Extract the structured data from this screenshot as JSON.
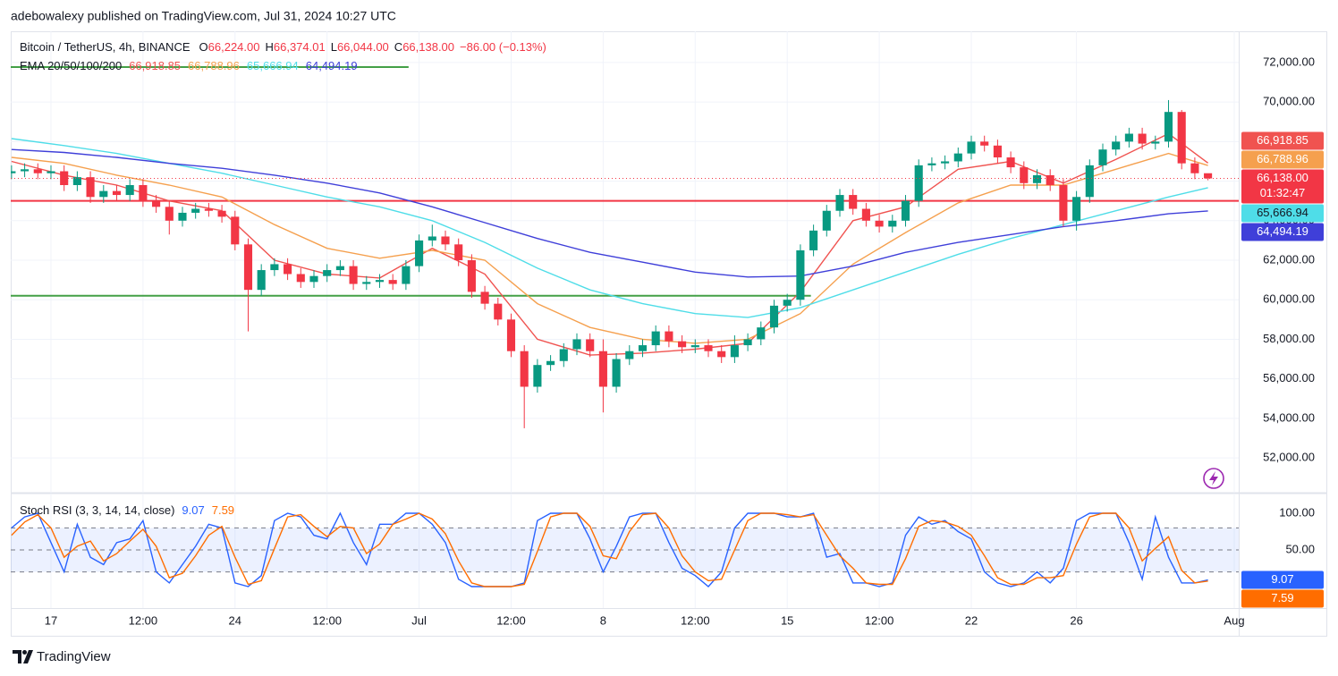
{
  "header": {
    "publisher": "adebowalexy published on TradingView.com, Jul 31, 2024 10:27 UTC"
  },
  "footer": {
    "brand": "TradingView"
  },
  "chart_data": [
    {
      "type": "candlestick",
      "title": "Bitcoin / TetherUS, 4h, BINANCE",
      "ohlc_legend": [
        {
          "key": "O",
          "value": "66,224.00"
        },
        {
          "key": "H",
          "value": "66,374.01"
        },
        {
          "key": "L",
          "value": "66,044.00"
        },
        {
          "key": "C",
          "value": "66,138.00"
        }
      ],
      "change": "−86.00 (−0.13%)",
      "x": [
        -1.5,
        -1,
        -0.5,
        0,
        0.5,
        1,
        1.5,
        2,
        2.5,
        3,
        3.5,
        4,
        4.5,
        5,
        5.5,
        6,
        6.5,
        7,
        7.5,
        8,
        8.5,
        9,
        9.5,
        10,
        10.5,
        11,
        11.5,
        12,
        12.5,
        13,
        13.5,
        14,
        14.5,
        15,
        15.5,
        16,
        16.5,
        17,
        17.5,
        18,
        18.5,
        19,
        19.5,
        20,
        20.5,
        21,
        21.5,
        22,
        22.5,
        23,
        23.5,
        24,
        24.5,
        25,
        25.5,
        26,
        26.5,
        27,
        27.5,
        28,
        28.5,
        29,
        29.5,
        30,
        30.5,
        31,
        31.5,
        32,
        32.5,
        33,
        33.5,
        34,
        34.5,
        35,
        35.5,
        36,
        36.5,
        37,
        37.5,
        38,
        38.5,
        39,
        39.5,
        40,
        40.5,
        41,
        41.5,
        42,
        42.5,
        43,
        43.5,
        44
      ],
      "open": [
        66400,
        66500,
        66600,
        66400,
        66500,
        65800,
        66200,
        65200,
        65500,
        65300,
        65800,
        65000,
        64700,
        64000,
        64400,
        64600,
        64500,
        64200,
        62800,
        60500,
        61500,
        61800,
        61300,
        60900,
        61200,
        61500,
        61700,
        60800,
        60900,
        61000,
        60800,
        61700,
        63000,
        63200,
        62800,
        62000,
        60400,
        59800,
        59000,
        57400,
        55600,
        56700,
        56900,
        57500,
        58000,
        57400,
        55600,
        57000,
        57400,
        57700,
        58400,
        57900,
        57600,
        57700,
        57400,
        57100,
        57700,
        58000,
        58600,
        59700,
        60000,
        62500,
        63500,
        64500,
        65300,
        64600,
        64000,
        63700,
        64000,
        65000,
        66800,
        66900,
        67000,
        67400,
        68000,
        67800,
        67200,
        66700,
        65900,
        66300,
        65800,
        64000,
        65200,
        66800,
        67600,
        68000,
        68400,
        67900,
        68000,
        69500,
        66900,
        66400
      ],
      "high": [
        66800,
        66900,
        66900,
        66800,
        66800,
        66500,
        66500,
        65800,
        65800,
        66100,
        66100,
        65300,
        65000,
        64700,
        64900,
        64900,
        64800,
        64500,
        63100,
        61800,
        62100,
        62100,
        61600,
        61500,
        61800,
        62000,
        62000,
        61200,
        61300,
        61300,
        62000,
        63300,
        63800,
        63500,
        63100,
        62300,
        60700,
        60100,
        59300,
        57700,
        57000,
        57200,
        57800,
        58300,
        58300,
        58000,
        57300,
        57700,
        58000,
        58700,
        58700,
        58200,
        58000,
        58000,
        57700,
        58200,
        58300,
        58900,
        60000,
        60300,
        62800,
        63800,
        64800,
        65600,
        65600,
        64900,
        64300,
        64300,
        65300,
        67100,
        67200,
        67300,
        67700,
        68300,
        68300,
        68100,
        67500,
        67000,
        66600,
        66600,
        66100,
        65500,
        67100,
        67900,
        68300,
        68700,
        68700,
        68300,
        70100,
        69600,
        67200,
        66374.01
      ],
      "low": [
        66100,
        66200,
        66100,
        66100,
        65500,
        65500,
        64900,
        64900,
        65000,
        65000,
        64700,
        64400,
        63300,
        63700,
        64100,
        64200,
        63900,
        62500,
        58400,
        60200,
        61200,
        61000,
        60600,
        60600,
        60900,
        61200,
        60500,
        60500,
        60600,
        60500,
        60500,
        61400,
        62700,
        62500,
        61700,
        60100,
        59500,
        58700,
        57100,
        53500,
        55300,
        56400,
        56600,
        57200,
        57100,
        54300,
        55300,
        56700,
        57100,
        57400,
        57600,
        57300,
        57300,
        57100,
        56800,
        56800,
        57400,
        57700,
        58300,
        59400,
        59700,
        62200,
        63200,
        64200,
        64300,
        63700,
        63400,
        63400,
        63700,
        64700,
        66500,
        66600,
        66700,
        67100,
        67500,
        66900,
        66400,
        65600,
        65600,
        65500,
        63700,
        63500,
        64900,
        66500,
        67300,
        67700,
        67600,
        67600,
        67700,
        66600,
        66100,
        66044
      ],
      "close": [
        66500,
        66600,
        66400,
        66500,
        65800,
        66200,
        65200,
        65500,
        65300,
        65800,
        65000,
        64700,
        64000,
        64400,
        64600,
        64500,
        64200,
        62800,
        60500,
        61500,
        61800,
        61300,
        60900,
        61200,
        61500,
        61700,
        60800,
        60900,
        61000,
        60800,
        61700,
        63000,
        63200,
        62800,
        62000,
        60400,
        59800,
        59000,
        57400,
        55600,
        56700,
        56900,
        57500,
        58000,
        57400,
        55600,
        57000,
        57400,
        57700,
        58400,
        57900,
        57600,
        57700,
        57400,
        57100,
        57700,
        58000,
        58600,
        59700,
        60000,
        62500,
        63500,
        64500,
        65300,
        64600,
        64000,
        63700,
        64000,
        65000,
        66800,
        66900,
        67000,
        67400,
        68000,
        67800,
        67200,
        66700,
        65900,
        66300,
        65800,
        64000,
        65200,
        66800,
        67600,
        68000,
        68400,
        67900,
        68000,
        69500,
        66900,
        66400,
        66138
      ],
      "up_color": "#089981",
      "down_color": "#f23645",
      "last_price": {
        "label": "66,138.00",
        "countdown": "01:32:47"
      },
      "ema": {
        "label": "EMA 20/50/100/200",
        "x": [
          -1.5,
          0.5,
          2.5,
          4.5,
          6.5,
          8.5,
          10.5,
          12.5,
          14.5,
          16.5,
          18.5,
          20.5,
          22.5,
          24.5,
          26.5,
          28.5,
          30.5,
          32.5,
          34.5,
          36.5,
          38.5,
          40.5,
          42.5,
          44
        ],
        "lines": [
          {
            "color": "#f05350",
            "last": {
              "value": 66918.85,
              "label": "66,918.85"
            },
            "values": [
              67000,
              66300,
              65800,
              65000,
              64500,
              62000,
              61300,
              61100,
              62600,
              61300,
              58000,
              57200,
              57300,
              57500,
              57800,
              60400,
              64000,
              64700,
              66600,
              67000,
              65900,
              67100,
              68400,
              66918.85
            ]
          },
          {
            "color": "#f5a04e",
            "last": {
              "value": 66788.96,
              "label": "66,788.96"
            },
            "values": [
              67200,
              66900,
              66300,
              65800,
              65200,
              63800,
              62600,
              62100,
              62500,
              62000,
              59800,
              58600,
              58000,
              57800,
              58000,
              59300,
              61800,
              63400,
              64900,
              65800,
              65800,
              66600,
              67400,
              66788.96
            ]
          },
          {
            "color": "#4fdde8",
            "last": {
              "value": 65666.94,
              "label": "65,666.94"
            },
            "values": [
              68150,
              67800,
              67400,
              66900,
              66400,
              65800,
              65200,
              64700,
              64000,
              62900,
              61600,
              60500,
              59800,
              59300,
              59100,
              59600,
              60500,
              61400,
              62300,
              63100,
              63800,
              64500,
              65200,
              65666.94
            ]
          },
          {
            "color": "#3f3fd9",
            "last": {
              "value": 64494.19,
              "label": "64,494.19"
            },
            "values": [
              67600,
              67450,
              67200,
              66900,
              66650,
              66300,
              65900,
              65400,
              64700,
              63900,
              63100,
              62400,
              61900,
              61400,
              61150,
              61200,
              61700,
              62400,
              62900,
              63300,
              63700,
              64000,
              64350,
              64494.19
            ]
          }
        ]
      },
      "hlines": [
        {
          "value": 65000,
          "color": "#f23645"
        },
        {
          "value": 60200,
          "color": "#43a047",
          "x_end": 28.9
        },
        {
          "value": 71770,
          "color": "#43a047",
          "x_end": 13.6
        }
      ],
      "xlim": [
        -1.53,
        45.17
      ],
      "ylim": [
        50240,
        73580
      ],
      "yticks": [
        {
          "value": 52000,
          "label": "52,000.00"
        },
        {
          "value": 54000,
          "label": "54,000.00"
        },
        {
          "value": 56000,
          "label": "56,000.00"
        },
        {
          "value": 58000,
          "label": "58,000.00"
        },
        {
          "value": 60000,
          "label": "60,000.00"
        },
        {
          "value": 62000,
          "label": "62,000.00"
        },
        {
          "value": 64000,
          "label": "64,000.00"
        },
        {
          "value": 66000,
          "label": "66,000.00"
        },
        {
          "value": 68000,
          "label": "68,000.00"
        },
        {
          "value": 70000,
          "label": "70,000.00"
        },
        {
          "value": 72000,
          "label": "72,000.00"
        }
      ],
      "xticks": [
        {
          "value": 0,
          "label": "17"
        },
        {
          "value": 3.5,
          "label": "12:00"
        },
        {
          "value": 7,
          "label": "24"
        },
        {
          "value": 10.5,
          "label": "12:00"
        },
        {
          "value": 14,
          "label": "Jul"
        },
        {
          "value": 17.5,
          "label": "12:00"
        },
        {
          "value": 21,
          "label": "8"
        },
        {
          "value": 24.5,
          "label": "12:00"
        },
        {
          "value": 28,
          "label": "15"
        },
        {
          "value": 31.5,
          "label": "12:00"
        },
        {
          "value": 35,
          "label": "22"
        },
        {
          "value": 39,
          "label": "26"
        },
        {
          "value": 45,
          "label": "Aug"
        }
      ],
      "grid": true
    },
    {
      "type": "line",
      "title": "Stoch RSI (3, 3, 14, 14, close)",
      "x": [
        -1.5,
        -1,
        -0.5,
        0,
        0.5,
        1,
        1.5,
        2,
        2.5,
        3,
        3.5,
        4,
        4.5,
        5,
        5.5,
        6,
        6.5,
        7,
        7.5,
        8,
        8.5,
        9,
        9.5,
        10,
        10.5,
        11,
        11.5,
        12,
        12.5,
        13,
        13.5,
        14,
        14.5,
        15,
        15.5,
        16,
        16.5,
        17,
        17.5,
        18,
        18.5,
        19,
        19.5,
        20,
        20.5,
        21,
        21.5,
        22,
        22.5,
        23,
        23.5,
        24,
        24.5,
        25,
        25.5,
        26,
        26.5,
        27,
        27.5,
        28,
        28.5,
        29,
        29.5,
        30,
        30.5,
        31,
        31.5,
        32,
        32.5,
        33,
        33.5,
        34,
        34.5,
        35,
        35.5,
        36,
        36.5,
        37,
        37.5,
        38,
        38.5,
        39,
        39.5,
        40,
        40.5,
        41,
        41.5,
        42,
        42.5,
        43,
        43.5,
        44
      ],
      "series": [
        {
          "color": "#2962ff",
          "values": [
            80,
            95,
            100,
            60,
            20,
            85,
            40,
            30,
            60,
            65,
            90,
            20,
            5,
            30,
            55,
            85,
            80,
            5,
            0,
            15,
            90,
            100,
            95,
            70,
            65,
            100,
            60,
            30,
            85,
            85,
            100,
            100,
            85,
            60,
            10,
            0,
            0,
            0,
            0,
            5,
            90,
            100,
            100,
            100,
            65,
            20,
            55,
            95,
            100,
            100,
            60,
            25,
            15,
            0,
            20,
            80,
            100,
            100,
            100,
            95,
            95,
            100,
            40,
            45,
            5,
            5,
            0,
            5,
            70,
            95,
            85,
            90,
            75,
            65,
            20,
            5,
            0,
            5,
            20,
            5,
            25,
            90,
            100,
            100,
            100,
            60,
            10,
            95,
            40,
            5,
            5,
            9.07
          ]
        },
        {
          "color": "#ff6d00",
          "values": [
            70,
            88,
            98,
            80,
            40,
            55,
            62,
            35,
            45,
            62,
            78,
            55,
            12,
            18,
            42,
            70,
            82,
            40,
            3,
            8,
            52,
            95,
            98,
            82,
            68,
            82,
            80,
            45,
            58,
            85,
            92,
            100,
            92,
            72,
            35,
            5,
            0,
            0,
            0,
            3,
            48,
            95,
            100,
            100,
            82,
            42,
            38,
            75,
            98,
            100,
            80,
            42,
            20,
            8,
            10,
            50,
            90,
            100,
            100,
            98,
            95,
            98,
            70,
            42,
            25,
            5,
            3,
            3,
            38,
            82,
            90,
            88,
            82,
            70,
            42,
            12,
            3,
            3,
            12,
            12,
            15,
            58,
            95,
            100,
            100,
            80,
            35,
            52,
            68,
            22,
            5,
            7.59
          ]
        }
      ],
      "band": [
        20,
        80
      ],
      "levels": [
        80,
        50,
        20
      ],
      "xlim": [
        -1.53,
        45.17
      ],
      "ylim": [
        -29.3,
        126.8
      ],
      "yticks": [
        {
          "value": 100,
          "label": "100.00"
        },
        {
          "value": 50,
          "label": "50.00"
        }
      ]
    }
  ]
}
